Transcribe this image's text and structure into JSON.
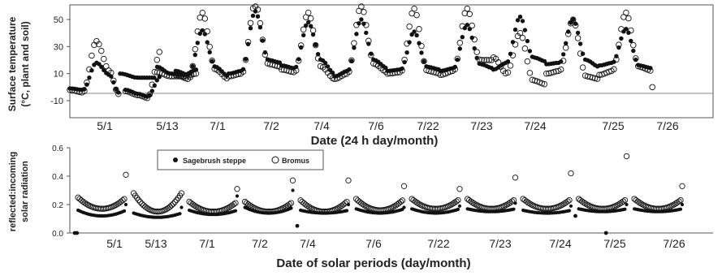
{
  "chart_data": [
    {
      "type": "scatter",
      "title": "",
      "ylabel_lines": [
        "Surface temperature",
        "(°C, plant and soil)"
      ],
      "xlabel": "Date (24 h day/month)",
      "ylim": [
        -10,
        60
      ],
      "yticks": [
        "-10",
        "10",
        "30",
        "50"
      ],
      "ytick_values": [
        -10,
        10,
        30,
        50
      ],
      "grid": false,
      "categories": [
        "5/1",
        "5/13",
        "7/1",
        "7/2",
        "7/4",
        "7/6",
        "7/22",
        "7/23",
        "7/24",
        "7/25",
        "7/26"
      ],
      "series": [
        {
          "name": "Sagebrush steppe",
          "marker": "filled",
          "segments": [
            {
              "start": 0.0,
              "points": [
                [
                  0,
                  -1
                ],
                [
                  6,
                  -2
                ],
                [
                  12,
                  18
                ],
                [
                  18,
                  9
                ],
                [
                  22,
                  -4
                ]
              ]
            },
            {
              "start": 0.95,
              "points": [
                [
                  0,
                  10
                ],
                [
                  8,
                  7
                ],
                [
                  16,
                  7
                ]
              ]
            },
            {
              "start": 1.05,
              "points": [
                [
                  0,
                  -2
                ],
                [
                  6,
                  -5
                ],
                [
                  10,
                  -7
                ],
                [
                  16,
                  8
                ]
              ]
            },
            {
              "start": 1.65,
              "points": [
                [
                  0,
                  15
                ],
                [
                  6,
                  10
                ],
                [
                  12,
                  9
                ],
                [
                  18,
                  13
                ]
              ]
            },
            {
              "start": 2.0,
              "points": [
                [
                  0,
                  12
                ],
                [
                  6,
                  9
                ],
                [
                  12,
                  42
                ],
                [
                  18,
                  15
                ],
                [
                  24,
                  8
                ]
              ]
            },
            {
              "start": 3.0,
              "points": [
                [
                  0,
                  10
                ],
                [
                  6,
                  12
                ],
                [
                  12,
                  56
                ],
                [
                  18,
                  20
                ],
                [
                  24,
                  18
                ]
              ]
            },
            {
              "start": 4.0,
              "points": [
                [
                  0,
                  16
                ],
                [
                  6,
                  14
                ],
                [
                  12,
                  48
                ],
                [
                  18,
                  20
                ],
                [
                  24,
                  10
                ]
              ]
            },
            {
              "start": 5.0,
              "points": [
                [
                  0,
                  8
                ],
                [
                  6,
                  12
                ],
                [
                  12,
                  50
                ],
                [
                  18,
                  20
                ],
                [
                  24,
                  14
                ]
              ]
            },
            {
              "start": 6.0,
              "points": [
                [
                  0,
                  12
                ],
                [
                  6,
                  13
                ],
                [
                  12,
                  41
                ],
                [
                  18,
                  15
                ],
                [
                  24,
                  13
                ]
              ]
            },
            {
              "start": 7.0,
              "points": [
                [
                  0,
                  12
                ],
                [
                  6,
                  14
                ],
                [
                  12,
                  46
                ],
                [
                  18,
                  17
                ],
                [
                  24,
                  14
                ]
              ]
            },
            {
              "start": 8.0,
              "points": [
                [
                  0,
                  13
                ],
                [
                  6,
                  18
                ],
                [
                  12,
                  52
                ],
                [
                  18,
                  22
                ],
                [
                  24,
                  19
                ]
              ]
            },
            {
              "start": 9.0,
              "points": [
                [
                  0,
                  17
                ],
                [
                  6,
                  18
                ],
                [
                  12,
                  50
                ],
                [
                  18,
                  20
                ],
                [
                  24,
                  15
                ]
              ]
            },
            {
              "start": 10.0,
              "points": [
                [
                  0,
                  16
                ],
                [
                  6,
                  18
                ],
                [
                  12,
                  43
                ],
                [
                  18,
                  16
                ],
                [
                  24,
                  14
                ]
              ]
            }
          ]
        },
        {
          "name": "Bromus",
          "marker": "open",
          "segments": [
            {
              "start": 0.0,
              "points": [
                [
                  0,
                  -2
                ],
                [
                  6,
                  -4
                ],
                [
                  12,
                  34
                ],
                [
                  18,
                  12
                ],
                [
                  22,
                  -5
                ]
              ]
            },
            {
              "start": 1.05,
              "points": [
                [
                  0,
                  -3
                ],
                [
                  6,
                  -6
                ],
                [
                  10,
                  -8
                ],
                [
                  16,
                  27
                ]
              ]
            },
            {
              "start": 1.65,
              "points": [
                [
                  0,
                  11
                ],
                [
                  6,
                  8
                ],
                [
                  12,
                  8
                ],
                [
                  18,
                  10
                ]
              ]
            },
            {
              "start": 2.0,
              "points": [
                [
                  0,
                  9
                ],
                [
                  6,
                  6
                ],
                [
                  12,
                  55
                ],
                [
                  18,
                  13
                ],
                [
                  24,
                  6
                ]
              ]
            },
            {
              "start": 3.0,
              "points": [
                [
                  0,
                  8
                ],
                [
                  6,
                  10
                ],
                [
                  12,
                  62
                ],
                [
                  18,
                  17
                ],
                [
                  24,
                  15
                ]
              ]
            },
            {
              "start": 4.0,
              "points": [
                [
                  0,
                  13
                ],
                [
                  6,
                  11
                ],
                [
                  12,
                  55
                ],
                [
                  18,
                  15
                ],
                [
                  24,
                  6
                ]
              ]
            },
            {
              "start": 5.0,
              "points": [
                [
                  0,
                  6
                ],
                [
                  6,
                  10
                ],
                [
                  12,
                  60
                ],
                [
                  18,
                  17
                ],
                [
                  24,
                  11
                ]
              ]
            },
            {
              "start": 6.0,
              "points": [
                [
                  0,
                  10
                ],
                [
                  6,
                  11
                ],
                [
                  12,
                  58
                ],
                [
                  18,
                  12
                ],
                [
                  24,
                  10
                ]
              ]
            },
            {
              "start": 7.0,
              "points": [
                [
                  0,
                  9
                ],
                [
                  6,
                  12
                ],
                [
                  12,
                  58
                ],
                [
                  18,
                  20
                ],
                [
                  24,
                  20
                ]
              ]
            },
            {
              "start": 8.0,
              "points": [
                [
                  0,
                  22
                ],
                [
                  6,
                  10
                ],
                [
                  12,
                  40
                ],
                [
                  18,
                  5
                ],
                [
                  24,
                  2
                ]
              ]
            },
            {
              "start": 9.0,
              "points": [
                [
                  0,
                  10
                ],
                [
                  6,
                  12
                ],
                [
                  12,
                  50
                ],
                [
                  18,
                  8
                ],
                [
                  24,
                  6
                ]
              ]
            },
            {
              "start": 10.0,
              "points": [
                [
                  0,
                  9
                ],
                [
                  6,
                  12
                ],
                [
                  12,
                  55
                ],
                [
                  18,
                  15
                ],
                [
                  24,
                  12
                ]
              ]
            }
          ],
          "extra_points": [
            [
              11.0,
              0
            ]
          ]
        }
      ]
    },
    {
      "type": "scatter",
      "title": "",
      "ylabel_lines": [
        "reflected:incoming",
        "solar radiation"
      ],
      "xlabel": "Date of solar periods (day/month)",
      "ylim": [
        0.0,
        0.6
      ],
      "yticks": [
        "0.0",
        "0.2",
        "0.4",
        "0.6"
      ],
      "ytick_values": [
        0.0,
        0.2,
        0.4,
        0.6
      ],
      "grid": false,
      "legend_position": "top-left",
      "categories": [
        "5/1",
        "5/13",
        "7/1",
        "7/2",
        "7/4",
        "7/6",
        "7/22",
        "7/23",
        "7/24",
        "7/25",
        "7/26"
      ],
      "series": [
        {
          "name": "Sagebrush steppe",
          "marker": "filled",
          "periods": [
            {
              "min": 0.12,
              "max": 0.16,
              "end": 0.2
            },
            {
              "min": 0.11,
              "max": 0.14,
              "end": 0.18
            },
            {
              "min": 0.13,
              "max": 0.16,
              "end": 0.26
            },
            {
              "min": 0.14,
              "max": 0.18,
              "end": 0.3
            },
            {
              "min": 0.14,
              "max": 0.16,
              "end": 0.2
            },
            {
              "min": 0.14,
              "max": 0.17,
              "end": 0.18
            },
            {
              "min": 0.14,
              "max": 0.17,
              "end": 0.19
            },
            {
              "min": 0.15,
              "max": 0.17,
              "end": 0.21
            },
            {
              "min": 0.14,
              "max": 0.16,
              "end": 0.19
            },
            {
              "min": 0.15,
              "max": 0.17,
              "end": 0.2
            },
            {
              "min": 0.15,
              "max": 0.17,
              "end": 0.2
            }
          ],
          "outliers": [
            [
              0.0,
              0.0
            ],
            [
              0.04,
              0.0
            ],
            [
              4.0,
              0.05
            ],
            [
              9.0,
              0.12
            ],
            [
              9.55,
              0.0
            ]
          ]
        },
        {
          "name": "Bromus",
          "marker": "open",
          "periods": [
            {
              "min": 0.17,
              "max": 0.25,
              "end": 0.41
            },
            {
              "min": 0.15,
              "max": 0.28,
              "end": 0.28
            },
            {
              "min": 0.15,
              "max": 0.22,
              "end": 0.31
            },
            {
              "min": 0.15,
              "max": 0.22,
              "end": 0.37
            },
            {
              "min": 0.15,
              "max": 0.23,
              "end": 0.37
            },
            {
              "min": 0.16,
              "max": 0.24,
              "end": 0.33
            },
            {
              "min": 0.17,
              "max": 0.24,
              "end": 0.31
            },
            {
              "min": 0.17,
              "max": 0.24,
              "end": 0.39
            },
            {
              "min": 0.17,
              "max": 0.24,
              "end": 0.42
            },
            {
              "min": 0.17,
              "max": 0.24,
              "end": 0.54
            },
            {
              "min": 0.17,
              "max": 0.24,
              "end": 0.33
            }
          ]
        }
      ]
    }
  ]
}
